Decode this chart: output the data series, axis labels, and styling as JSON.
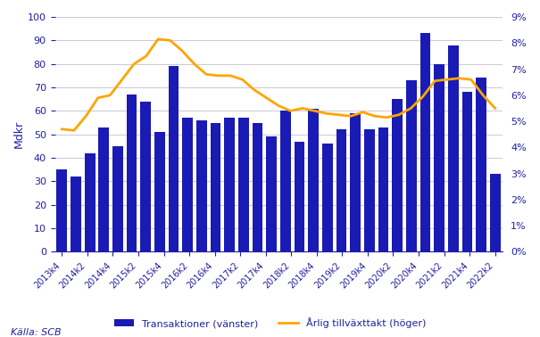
{
  "bar_heights": [
    35,
    32,
    42,
    53,
    45,
    67,
    64,
    51,
    79,
    57,
    56,
    55,
    57,
    57,
    55,
    49,
    60,
    47,
    61,
    46,
    52,
    59,
    52,
    53,
    65,
    73,
    93,
    80,
    88,
    68,
    74,
    33
  ],
  "line_values": [
    4.7,
    4.65,
    5.2,
    5.9,
    6.0,
    6.6,
    7.2,
    7.5,
    8.15,
    8.1,
    7.7,
    7.2,
    6.8,
    6.75,
    6.75,
    6.6,
    6.2,
    5.9,
    5.6,
    5.4,
    5.5,
    5.4,
    5.3,
    5.25,
    5.2,
    5.35,
    5.2,
    5.15,
    5.25,
    5.5,
    5.95,
    6.55,
    6.6,
    6.65,
    6.6,
    6.0,
    5.5
  ],
  "x_tick_labels": [
    "2013k4",
    "2014k2",
    "2014k4",
    "2015k2",
    "2015k4",
    "2016k2",
    "2016k4",
    "2017k2",
    "2017k4",
    "2018k2",
    "2018k4",
    "2019k2",
    "2019k4",
    "2020k2",
    "2020k4",
    "2021k2",
    "2021k4",
    "2022k2"
  ],
  "bar_color": "#1A1AB5",
  "line_color": "#FFA500",
  "left_ylabel": "Mdkr",
  "left_ylim": [
    0,
    100
  ],
  "right_ylim": [
    0,
    9
  ],
  "right_yticks": [
    0,
    1,
    2,
    3,
    4,
    5,
    6,
    7,
    8,
    9
  ],
  "left_yticks": [
    0,
    10,
    20,
    30,
    40,
    50,
    60,
    70,
    80,
    90,
    100
  ],
  "legend_bar": "Transaktioner (vänster)",
  "legend_line": "Årlig tillväxttakt (höger)",
  "source": "Källa: SCB",
  "bg_color": "#FFFFFF",
  "grid_color": "#C0C0D8",
  "text_color": "#2020A0",
  "n_bars": 32
}
